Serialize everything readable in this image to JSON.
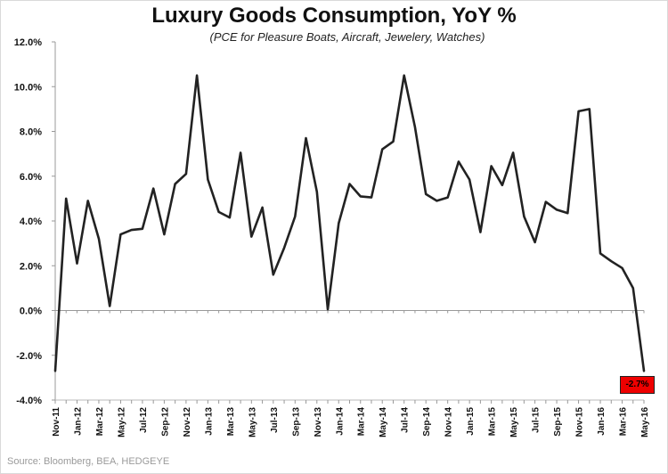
{
  "chart_data": {
    "type": "line",
    "title": "Luxury Goods Consumption, YoY %",
    "subtitle": "(PCE for Pleasure Boats, Aircraft, Jewelery, Watches)",
    "xlabel": "",
    "ylabel": "",
    "ylim": [
      -4.0,
      12.0
    ],
    "y_ticks": [
      "12.0%",
      "10.0%",
      "8.0%",
      "6.0%",
      "4.0%",
      "2.0%",
      "0.0%",
      "-2.0%",
      "-4.0%"
    ],
    "grid": false,
    "x_tick_labels": [
      "Nov-11",
      "Jan-12",
      "Mar-12",
      "May-12",
      "Jul-12",
      "Sep-12",
      "Nov-12",
      "Jan-13",
      "Mar-13",
      "May-13",
      "Jul-13",
      "Sep-13",
      "Nov-13",
      "Jan-14",
      "Mar-14",
      "May-14",
      "Jul-14",
      "Sep-14",
      "Nov-14",
      "Jan-15",
      "Mar-15",
      "May-15",
      "Jul-15",
      "Sep-15",
      "Nov-15",
      "Jan-16",
      "Mar-16",
      "May-16"
    ],
    "x": [
      "Nov-11",
      "Dec-11",
      "Jan-12",
      "Feb-12",
      "Mar-12",
      "Apr-12",
      "May-12",
      "Jun-12",
      "Jul-12",
      "Aug-12",
      "Sep-12",
      "Oct-12",
      "Nov-12",
      "Dec-12",
      "Jan-13",
      "Feb-13",
      "Mar-13",
      "Apr-13",
      "May-13",
      "Jun-13",
      "Jul-13",
      "Aug-13",
      "Sep-13",
      "Oct-13",
      "Nov-13",
      "Dec-13",
      "Jan-14",
      "Feb-14",
      "Mar-14",
      "Apr-14",
      "May-14",
      "Jun-14",
      "Jul-14",
      "Aug-14",
      "Sep-14",
      "Oct-14",
      "Nov-14",
      "Dec-14",
      "Jan-15",
      "Feb-15",
      "Mar-15",
      "Apr-15",
      "May-15",
      "Jun-15",
      "Jul-15",
      "Aug-15",
      "Sep-15",
      "Oct-15",
      "Nov-15",
      "Dec-15",
      "Jan-16",
      "Feb-16",
      "Mar-16",
      "Apr-16",
      "May-16"
    ],
    "series": [
      {
        "values": [
          -2.7,
          5.0,
          2.1,
          4.9,
          3.2,
          0.2,
          3.4,
          3.6,
          3.65,
          5.45,
          3.4,
          5.65,
          6.1,
          10.5,
          5.85,
          4.4,
          4.15,
          7.05,
          3.3,
          4.6,
          1.6,
          2.8,
          4.2,
          7.7,
          5.3,
          0.05,
          3.9,
          5.65,
          5.1,
          5.05,
          7.2,
          7.55,
          10.5,
          8.2,
          5.2,
          4.9,
          5.05,
          6.65,
          5.85,
          3.5,
          6.45,
          5.6,
          7.05,
          4.2,
          3.05,
          4.85,
          4.5,
          4.35,
          8.9,
          9.0,
          2.55,
          2.2,
          1.9,
          1.0,
          -2.7
        ]
      }
    ],
    "last_value_label": "-2.7%",
    "line_color": "#222222",
    "highlight_color": "#ee0000"
  },
  "source": "Source: Bloomberg, BEA, HEDGEYE"
}
